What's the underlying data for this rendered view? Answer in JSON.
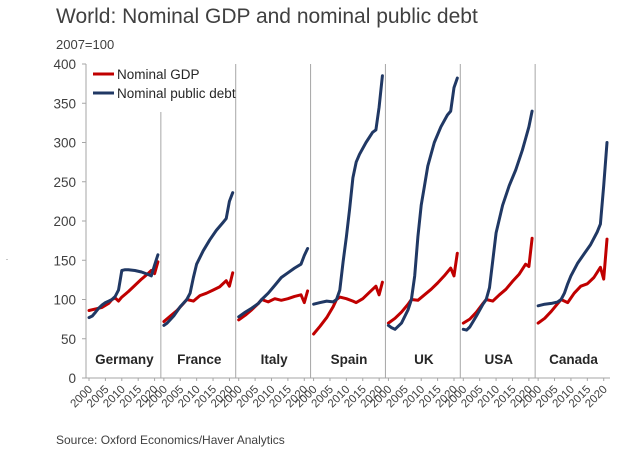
{
  "title": "World: Nominal GDP and nominal public debt",
  "unit_label": "2007=100",
  "source": "Source: Oxford Economics/Haver Analytics",
  "colors": {
    "gdp": "#c00000",
    "debt": "#203864",
    "axis": "#a6a6a6",
    "text": "#404040"
  },
  "chart_data": {
    "type": "line",
    "ylim": [
      0,
      400
    ],
    "yticks": [
      0,
      50,
      100,
      150,
      200,
      250,
      300,
      350,
      400
    ],
    "xlim": [
      2000,
      2021
    ],
    "xticks": [
      "2000",
      "2005",
      "2010",
      "2015",
      "2020"
    ],
    "legend": {
      "position": "top-left",
      "entries": [
        "Nominal GDP",
        "Nominal public debt"
      ]
    },
    "grid": false,
    "panels": [
      {
        "name": "Germany",
        "gdp": {
          "x": [
            2000,
            2002,
            2004,
            2006,
            2007,
            2008,
            2009,
            2010,
            2012,
            2014,
            2016,
            2018,
            2019,
            2020,
            2021
          ],
          "y": [
            86,
            88,
            90,
            95,
            100,
            102,
            98,
            103,
            110,
            118,
            126,
            133,
            137,
            133,
            148
          ]
        },
        "debt": {
          "x": [
            2000,
            2001,
            2002,
            2003,
            2004,
            2005,
            2006,
            2007,
            2008,
            2009,
            2009.5,
            2010,
            2011,
            2012,
            2014,
            2016,
            2018,
            2019,
            2020,
            2021
          ],
          "y": [
            77,
            79,
            84,
            89,
            93,
            96,
            98,
            100,
            104,
            112,
            124,
            137,
            138,
            138,
            137,
            135,
            132,
            130,
            144,
            157
          ]
        }
      },
      {
        "name": "France",
        "gdp": {
          "x": [
            2000,
            2002,
            2004,
            2006,
            2007,
            2009,
            2011,
            2013,
            2015,
            2017,
            2019,
            2020,
            2021
          ],
          "y": [
            72,
            79,
            86,
            95,
            100,
            98,
            105,
            108,
            112,
            116,
            124,
            117,
            134
          ]
        },
        "debt": {
          "x": [
            2000,
            2001,
            2003,
            2005,
            2007,
            2008,
            2009,
            2010,
            2012,
            2014,
            2016,
            2018,
            2019,
            2020,
            2021
          ],
          "y": [
            67,
            70,
            79,
            91,
            100,
            108,
            128,
            145,
            162,
            176,
            188,
            198,
            203,
            225,
            236
          ]
        }
      },
      {
        "name": "Italy",
        "gdp": {
          "x": [
            2000,
            2002,
            2004,
            2006,
            2007,
            2009,
            2011,
            2013,
            2015,
            2017,
            2019,
            2020,
            2021
          ],
          "y": [
            74,
            80,
            87,
            95,
            100,
            97,
            101,
            99,
            101,
            104,
            106,
            96,
            111
          ]
        },
        "debt": {
          "x": [
            2000,
            2002,
            2004,
            2006,
            2007,
            2009,
            2011,
            2013,
            2015,
            2017,
            2019,
            2020,
            2021
          ],
          "y": [
            78,
            84,
            89,
            95,
            100,
            108,
            118,
            128,
            134,
            140,
            145,
            156,
            165
          ]
        }
      },
      {
        "name": "Spain",
        "gdp": {
          "x": [
            2000,
            2002,
            2004,
            2006,
            2007,
            2008,
            2010,
            2012,
            2013,
            2015,
            2017,
            2019,
            2020,
            2021
          ],
          "y": [
            56,
            66,
            77,
            91,
            100,
            103,
            101,
            98,
            96,
            101,
            109,
            117,
            106,
            122
          ]
        },
        "debt": {
          "x": [
            2000,
            2002,
            2004,
            2006,
            2007,
            2008,
            2009,
            2010,
            2011,
            2012,
            2013,
            2014,
            2016,
            2018,
            2019,
            2020,
            2021
          ],
          "y": [
            94,
            96,
            98,
            97,
            100,
            112,
            148,
            180,
            215,
            255,
            275,
            285,
            300,
            313,
            316,
            345,
            385
          ]
        }
      },
      {
        "name": "UK",
        "gdp": {
          "x": [
            2000,
            2002,
            2004,
            2006,
            2007,
            2009,
            2011,
            2013,
            2015,
            2017,
            2019,
            2020,
            2021
          ],
          "y": [
            70,
            76,
            84,
            94,
            100,
            99,
            106,
            113,
            121,
            130,
            140,
            130,
            159
          ]
        },
        "debt": {
          "x": [
            2000,
            2001,
            2002,
            2004,
            2006,
            2007,
            2008,
            2009,
            2010,
            2011,
            2012,
            2014,
            2016,
            2018,
            2019,
            2020,
            2021
          ],
          "y": [
            67,
            64,
            62,
            70,
            87,
            100,
            130,
            180,
            220,
            245,
            270,
            300,
            320,
            335,
            340,
            370,
            382
          ]
        }
      },
      {
        "name": "USA",
        "gdp": {
          "x": [
            2000,
            2002,
            2004,
            2006,
            2007,
            2009,
            2011,
            2013,
            2015,
            2017,
            2019,
            2020,
            2021
          ],
          "y": [
            70,
            75,
            84,
            95,
            100,
            98,
            106,
            113,
            123,
            132,
            145,
            142,
            178
          ]
        },
        "debt": {
          "x": [
            2000,
            2001,
            2002,
            2004,
            2006,
            2007,
            2008,
            2009,
            2010,
            2012,
            2014,
            2016,
            2018,
            2019,
            2020,
            2021
          ],
          "y": [
            62,
            61,
            65,
            79,
            94,
            100,
            115,
            150,
            185,
            220,
            245,
            265,
            290,
            305,
            320,
            340
          ]
        }
      },
      {
        "name": "Canada",
        "gdp": {
          "x": [
            2000,
            2002,
            2004,
            2006,
            2007,
            2009,
            2011,
            2013,
            2015,
            2017,
            2019,
            2020,
            2021
          ],
          "y": [
            70,
            76,
            85,
            95,
            100,
            96,
            108,
            117,
            120,
            128,
            141,
            126,
            177
          ]
        },
        "debt": {
          "x": [
            2000,
            2002,
            2004,
            2006,
            2007,
            2008,
            2009,
            2010,
            2012,
            2014,
            2016,
            2018,
            2019,
            2020,
            2021
          ],
          "y": [
            92,
            94,
            95,
            97,
            100,
            108,
            120,
            130,
            146,
            158,
            170,
            186,
            196,
            245,
            300
          ]
        }
      }
    ]
  }
}
